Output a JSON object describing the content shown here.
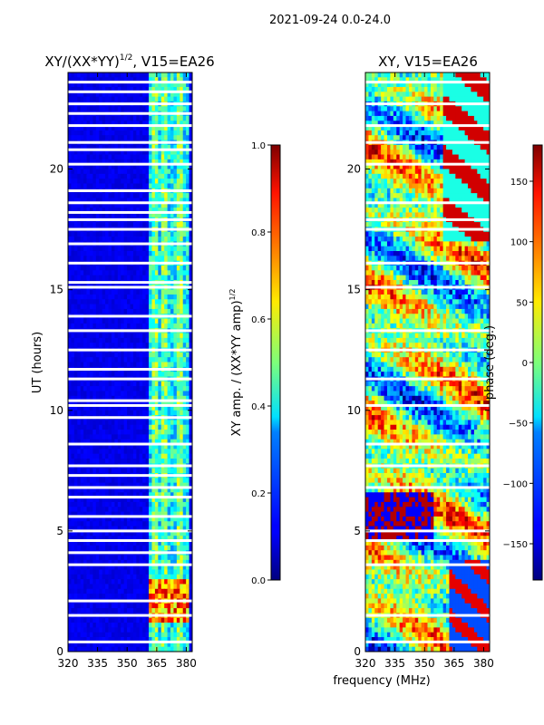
{
  "figure": {
    "suptitle": "2021-09-24 0.0-24.0",
    "shared_xlabel": "frequency (MHz)"
  },
  "chart_data": [
    {
      "type": "heatmap",
      "title_main": "XY/(XX*YY)",
      "title_sup": "1/2",
      "title_suffix": ", V15=EA26",
      "ylabel": "UT (hours)",
      "xlim": [
        320,
        383
      ],
      "ylim": [
        0,
        24
      ],
      "xticks": [
        "320",
        "335",
        "350",
        "365",
        "380"
      ],
      "xtick_values": [
        320,
        335,
        350,
        365,
        380
      ],
      "yticks": [
        "0",
        "5",
        "10",
        "15",
        "20"
      ],
      "ytick_values": [
        0,
        5,
        10,
        15,
        20
      ],
      "colorbar": {
        "label_main": "XY amp. / (XX*YY amp)",
        "label_sup": "1/2",
        "range": [
          0.0,
          1.0
        ],
        "ticks": [
          "0.0",
          "0.2",
          "0.4",
          "0.6",
          "0.8",
          "1.0"
        ],
        "tick_values": [
          0.0,
          0.2,
          0.4,
          0.6,
          0.8,
          1.0
        ],
        "colormap": "jet"
      },
      "flagged_bands_ut": [
        0.4,
        1.5,
        2.1,
        3.6,
        4.1,
        4.6,
        5.0,
        5.6,
        6.4,
        6.8,
        7.3,
        7.7,
        8.6,
        9.7,
        10.2,
        10.4,
        11.3,
        11.7,
        12.5,
        13.3,
        13.9,
        15.1,
        15.3,
        16.1,
        16.9,
        17.5,
        17.9,
        18.2,
        18.6,
        19.1,
        20.2,
        20.8,
        21.1,
        21.8,
        22.3,
        22.7,
        23.2,
        23.6
      ]
    },
    {
      "type": "heatmap",
      "title_main": "XY, V15=EA26",
      "xlim": [
        320,
        383
      ],
      "ylim": [
        0,
        24
      ],
      "xticks": [
        "320",
        "335",
        "350",
        "365",
        "380"
      ],
      "xtick_values": [
        320,
        335,
        350,
        365,
        380
      ],
      "yticks": [
        "0",
        "5",
        "10",
        "15",
        "20"
      ],
      "ytick_values": [
        0,
        5,
        10,
        15,
        20
      ],
      "colorbar": {
        "label_main": "phase (deg.)",
        "range": [
          -180,
          180
        ],
        "ticks": [
          "−150",
          "−100",
          "−50",
          "0",
          "50",
          "100",
          "150"
        ],
        "tick_values": [
          -150,
          -100,
          -50,
          0,
          50,
          100,
          150
        ],
        "colormap": "jet"
      },
      "flagged_bands_ut": [
        0.4,
        1.5,
        3.6,
        4.6,
        5.0,
        6.8,
        7.7,
        8.6,
        10.2,
        11.3,
        12.5,
        13.3,
        15.1,
        16.1,
        17.5,
        17.9,
        18.6,
        20.2,
        21.1,
        21.8,
        22.7,
        23.6
      ]
    }
  ]
}
